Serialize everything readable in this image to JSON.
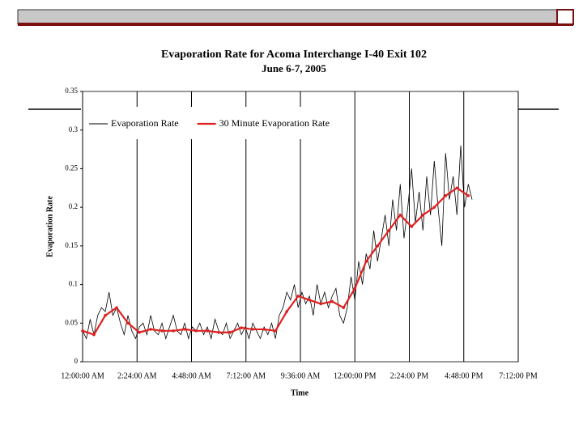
{
  "chart_data": {
    "type": "line",
    "title": "Evaporation Rate for Acoma Interchange I-40 Exit 102",
    "subtitle": "June 6-7, 2005",
    "x_label": "Time",
    "y_label": "Evaporation Rate",
    "xlim": [
      0,
      1152
    ],
    "xticks": [
      {
        "value": 0,
        "label": "12:00:00 AM"
      },
      {
        "value": 144,
        "label": "2:24:00 AM"
      },
      {
        "value": 288,
        "label": "4:48:00 AM"
      },
      {
        "value": 432,
        "label": "7:12:00 AM"
      },
      {
        "value": 576,
        "label": "9:36:00 AM"
      },
      {
        "value": 720,
        "label": "12:00:00 PM"
      },
      {
        "value": 864,
        "label": "2:24:00 PM"
      },
      {
        "value": 1008,
        "label": "4:48:00 PM"
      },
      {
        "value": 1152,
        "label": "7:12:00 PM"
      }
    ],
    "ylim": [
      0,
      0.35
    ],
    "yticks": [
      0,
      0.05,
      0.1,
      0.15,
      0.2,
      0.25,
      0.3,
      0.35
    ],
    "grid": true,
    "legend": "top-left",
    "series": [
      {
        "name": "Evaporation Rate",
        "color": "#000000",
        "x": [
          0,
          10,
          20,
          30,
          40,
          50,
          60,
          70,
          80,
          90,
          100,
          110,
          120,
          130,
          140,
          150,
          160,
          170,
          180,
          190,
          200,
          210,
          220,
          230,
          240,
          250,
          260,
          270,
          280,
          290,
          300,
          310,
          320,
          330,
          340,
          350,
          360,
          370,
          380,
          390,
          400,
          410,
          420,
          430,
          440,
          450,
          460,
          470,
          480,
          490,
          500,
          510,
          520,
          530,
          540,
          550,
          560,
          570,
          580,
          590,
          600,
          610,
          620,
          630,
          640,
          650,
          660,
          670,
          680,
          690,
          700,
          710,
          720,
          730,
          740,
          750,
          760,
          770,
          780,
          790,
          800,
          810,
          820,
          830,
          840,
          850,
          860,
          870,
          880,
          890,
          900,
          910,
          920,
          930,
          940,
          950,
          960,
          970,
          980,
          990,
          1000,
          1010,
          1020,
          1030
        ],
        "values": [
          0.04,
          0.03,
          0.055,
          0.035,
          0.06,
          0.07,
          0.065,
          0.09,
          0.06,
          0.07,
          0.05,
          0.035,
          0.06,
          0.04,
          0.03,
          0.045,
          0.05,
          0.035,
          0.06,
          0.04,
          0.035,
          0.05,
          0.03,
          0.045,
          0.06,
          0.04,
          0.035,
          0.05,
          0.03,
          0.045,
          0.04,
          0.05,
          0.035,
          0.045,
          0.03,
          0.055,
          0.04,
          0.035,
          0.05,
          0.03,
          0.04,
          0.05,
          0.035,
          0.045,
          0.03,
          0.05,
          0.04,
          0.03,
          0.045,
          0.035,
          0.05,
          0.03,
          0.06,
          0.07,
          0.09,
          0.08,
          0.1,
          0.07,
          0.09,
          0.075,
          0.085,
          0.06,
          0.1,
          0.075,
          0.09,
          0.07,
          0.085,
          0.095,
          0.06,
          0.05,
          0.07,
          0.11,
          0.08,
          0.13,
          0.1,
          0.14,
          0.12,
          0.17,
          0.13,
          0.16,
          0.19,
          0.15,
          0.21,
          0.17,
          0.23,
          0.16,
          0.2,
          0.25,
          0.18,
          0.22,
          0.17,
          0.24,
          0.19,
          0.26,
          0.2,
          0.15,
          0.27,
          0.21,
          0.24,
          0.19,
          0.28,
          0.2,
          0.23,
          0.21
        ]
      },
      {
        "name": "30 Minute Evaporation Rate",
        "color": "#e02020",
        "x": [
          0,
          30,
          60,
          90,
          120,
          150,
          180,
          210,
          240,
          270,
          300,
          330,
          360,
          390,
          420,
          450,
          480,
          510,
          540,
          570,
          600,
          630,
          660,
          690,
          720,
          750,
          780,
          810,
          840,
          870,
          900,
          930,
          960,
          990,
          1020
        ],
        "values": [
          0.04,
          0.035,
          0.06,
          0.07,
          0.05,
          0.038,
          0.042,
          0.04,
          0.04,
          0.042,
          0.04,
          0.04,
          0.038,
          0.038,
          0.044,
          0.042,
          0.042,
          0.04,
          0.065,
          0.085,
          0.08,
          0.075,
          0.078,
          0.07,
          0.095,
          0.13,
          0.15,
          0.17,
          0.19,
          0.175,
          0.19,
          0.2,
          0.215,
          0.225,
          0.215
        ]
      }
    ]
  }
}
